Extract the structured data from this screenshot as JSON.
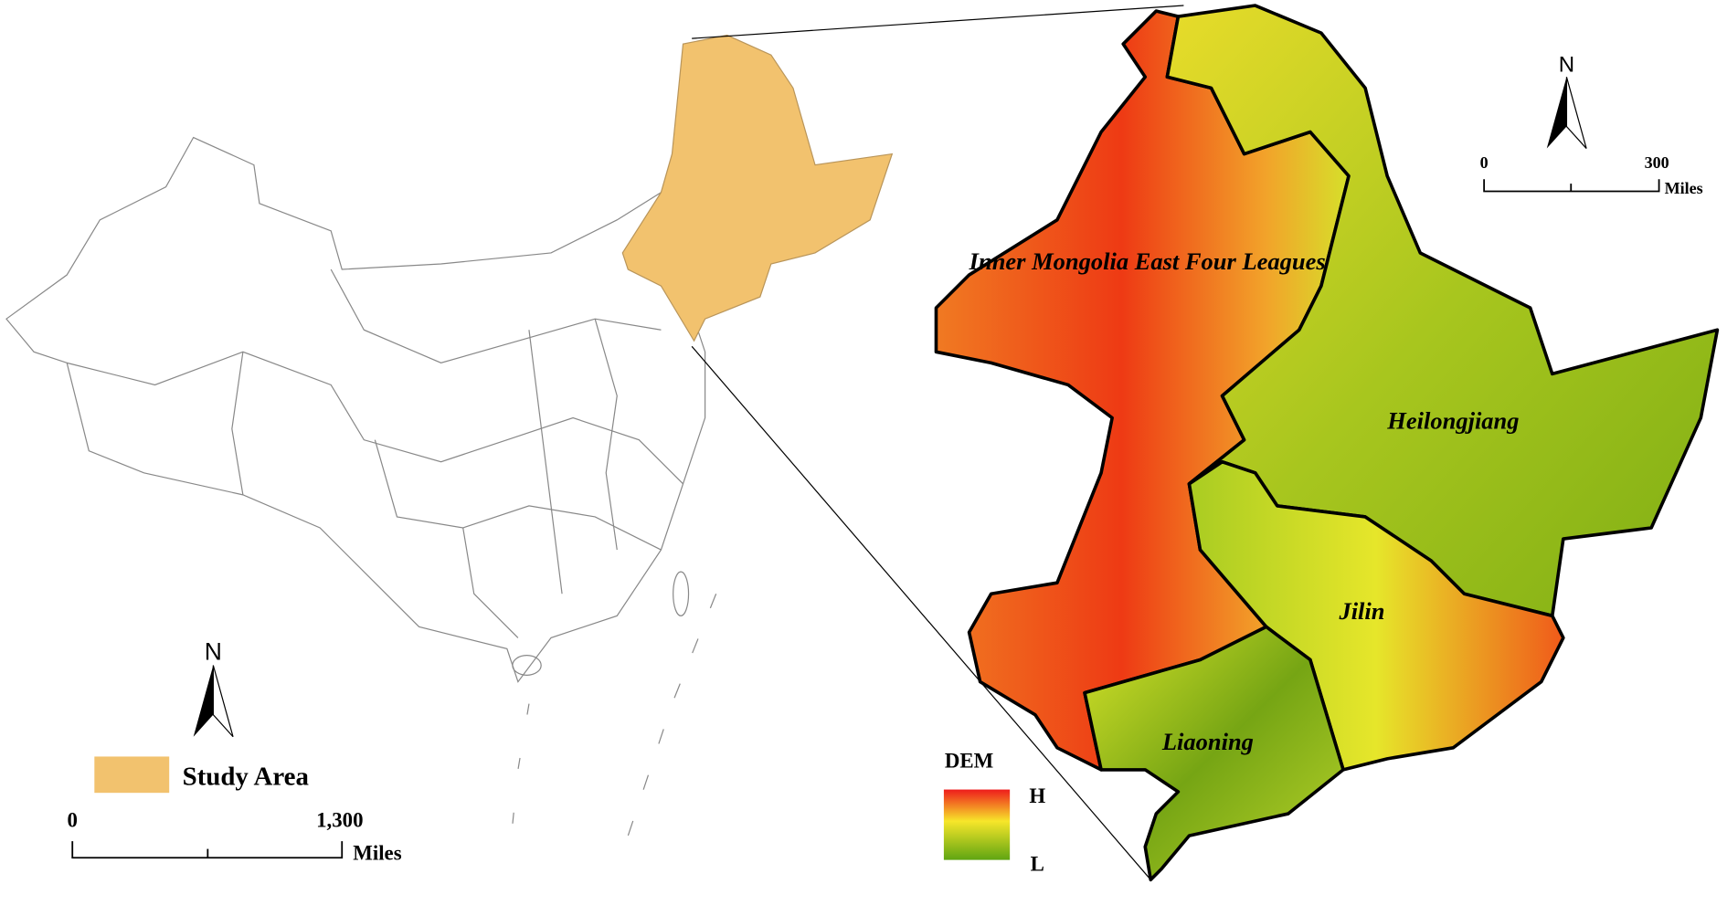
{
  "left_map": {
    "legend": {
      "label": "Study Area"
    },
    "scale_bar": {
      "start": "0",
      "end": "1,300",
      "unit": "Miles"
    },
    "north": "N"
  },
  "right_map": {
    "regions": [
      "Inner Mongolia East Four Leagues",
      "Heilongjiang",
      "Jilin",
      "Liaoning"
    ],
    "legend": {
      "title": "DEM",
      "high": "H",
      "low": "L"
    },
    "scale_bar": {
      "start": "0",
      "end": "300",
      "unit": "Miles"
    },
    "north": "N"
  }
}
